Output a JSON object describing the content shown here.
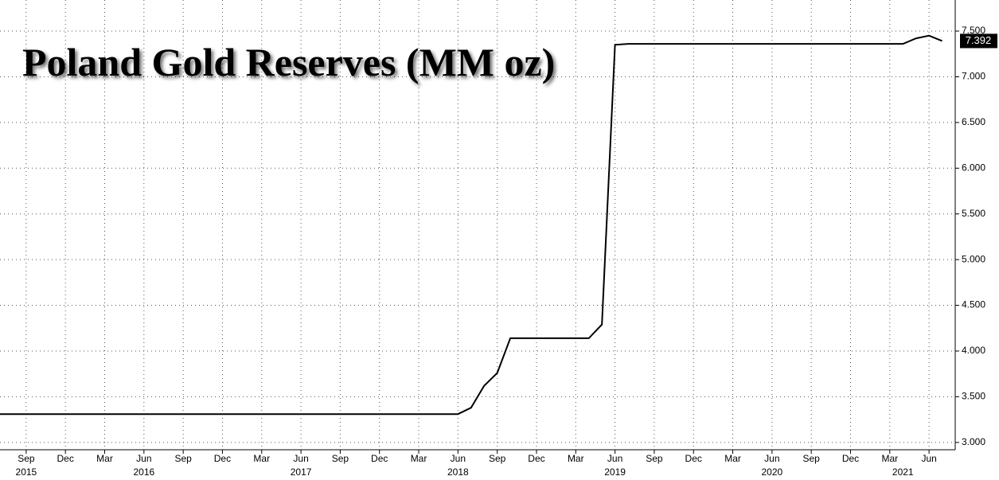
{
  "chart_data": {
    "type": "line",
    "title": "Poland Gold Reserves (MM oz)",
    "x": [
      "2015-07",
      "2015-08",
      "2015-09",
      "2015-10",
      "2015-11",
      "2015-12",
      "2016-01",
      "2016-02",
      "2016-03",
      "2016-04",
      "2016-05",
      "2016-06",
      "2016-07",
      "2016-08",
      "2016-09",
      "2016-10",
      "2016-11",
      "2016-12",
      "2017-01",
      "2017-02",
      "2017-03",
      "2017-04",
      "2017-05",
      "2017-06",
      "2017-07",
      "2017-08",
      "2017-09",
      "2017-10",
      "2017-11",
      "2017-12",
      "2018-01",
      "2018-02",
      "2018-03",
      "2018-04",
      "2018-05",
      "2018-06",
      "2018-07",
      "2018-08",
      "2018-09",
      "2018-10",
      "2018-11",
      "2018-12",
      "2019-01",
      "2019-02",
      "2019-03",
      "2019-04",
      "2019-05",
      "2019-06",
      "2019-07",
      "2019-08",
      "2019-09",
      "2019-10",
      "2019-11",
      "2019-12",
      "2020-01",
      "2020-02",
      "2020-03",
      "2020-04",
      "2020-05",
      "2020-06",
      "2020-07",
      "2020-08",
      "2020-09",
      "2020-10",
      "2020-11",
      "2020-12",
      "2021-01",
      "2021-02",
      "2021-03",
      "2021-04",
      "2021-05",
      "2021-06",
      "2021-07"
    ],
    "series": [
      {
        "name": "Poland Gold Reserves",
        "color": "#000000",
        "values": [
          3.31,
          3.31,
          3.31,
          3.31,
          3.31,
          3.31,
          3.31,
          3.31,
          3.31,
          3.31,
          3.31,
          3.31,
          3.31,
          3.31,
          3.31,
          3.31,
          3.31,
          3.31,
          3.31,
          3.31,
          3.31,
          3.31,
          3.31,
          3.31,
          3.31,
          3.31,
          3.31,
          3.31,
          3.31,
          3.31,
          3.31,
          3.31,
          3.31,
          3.31,
          3.31,
          3.31,
          3.38,
          3.62,
          3.76,
          4.14,
          4.14,
          4.14,
          4.14,
          4.14,
          4.14,
          4.14,
          4.29,
          7.35,
          7.36,
          7.36,
          7.36,
          7.36,
          7.36,
          7.36,
          7.36,
          7.36,
          7.36,
          7.36,
          7.36,
          7.36,
          7.36,
          7.36,
          7.36,
          7.36,
          7.36,
          7.36,
          7.36,
          7.36,
          7.36,
          7.36,
          7.42,
          7.45,
          7.392
        ]
      }
    ],
    "last_value_label": "7.392",
    "xlim": [
      "2015-07",
      "2021-08"
    ],
    "xticks": [
      {
        "value": "2015-09",
        "label": "Sep"
      },
      {
        "value": "2015-12",
        "label": "Dec"
      },
      {
        "value": "2016-03",
        "label": "Mar"
      },
      {
        "value": "2016-06",
        "label": "Jun"
      },
      {
        "value": "2016-09",
        "label": "Sep"
      },
      {
        "value": "2016-12",
        "label": "Dec"
      },
      {
        "value": "2017-03",
        "label": "Mar"
      },
      {
        "value": "2017-06",
        "label": "Jun"
      },
      {
        "value": "2017-09",
        "label": "Sep"
      },
      {
        "value": "2017-12",
        "label": "Dec"
      },
      {
        "value": "2018-03",
        "label": "Mar"
      },
      {
        "value": "2018-06",
        "label": "Jun"
      },
      {
        "value": "2018-09",
        "label": "Sep"
      },
      {
        "value": "2018-12",
        "label": "Dec"
      },
      {
        "value": "2019-03",
        "label": "Mar"
      },
      {
        "value": "2019-06",
        "label": "Jun"
      },
      {
        "value": "2019-09",
        "label": "Sep"
      },
      {
        "value": "2019-12",
        "label": "Dec"
      },
      {
        "value": "2020-03",
        "label": "Mar"
      },
      {
        "value": "2020-06",
        "label": "Jun"
      },
      {
        "value": "2020-09",
        "label": "Sep"
      },
      {
        "value": "2020-12",
        "label": "Dec"
      },
      {
        "value": "2021-03",
        "label": "Mar"
      },
      {
        "value": "2021-06",
        "label": "Jun"
      }
    ],
    "year_labels": [
      {
        "value": "2015-09",
        "label": "2015"
      },
      {
        "value": "2016-06",
        "label": "2016"
      },
      {
        "value": "2017-06",
        "label": "2017"
      },
      {
        "value": "2018-06",
        "label": "2018"
      },
      {
        "value": "2019-06",
        "label": "2019"
      },
      {
        "value": "2020-06",
        "label": "2020"
      },
      {
        "value": "2021-04",
        "label": "2021"
      }
    ],
    "ylim": [
      2.92,
      7.84
    ],
    "yticks": [
      {
        "value": 3,
        "label": "3.000"
      },
      {
        "value": 3.5,
        "label": "3.500"
      },
      {
        "value": 4,
        "label": "4.000"
      },
      {
        "value": 4.5,
        "label": "4.500"
      },
      {
        "value": 5,
        "label": "5.000"
      },
      {
        "value": 5.5,
        "label": "5.500"
      },
      {
        "value": 6,
        "label": "6.000"
      },
      {
        "value": 6.5,
        "label": "6.500"
      },
      {
        "value": 7,
        "label": "7.000"
      },
      {
        "value": 7.5,
        "label": "7.500"
      }
    ],
    "grid": true
  }
}
